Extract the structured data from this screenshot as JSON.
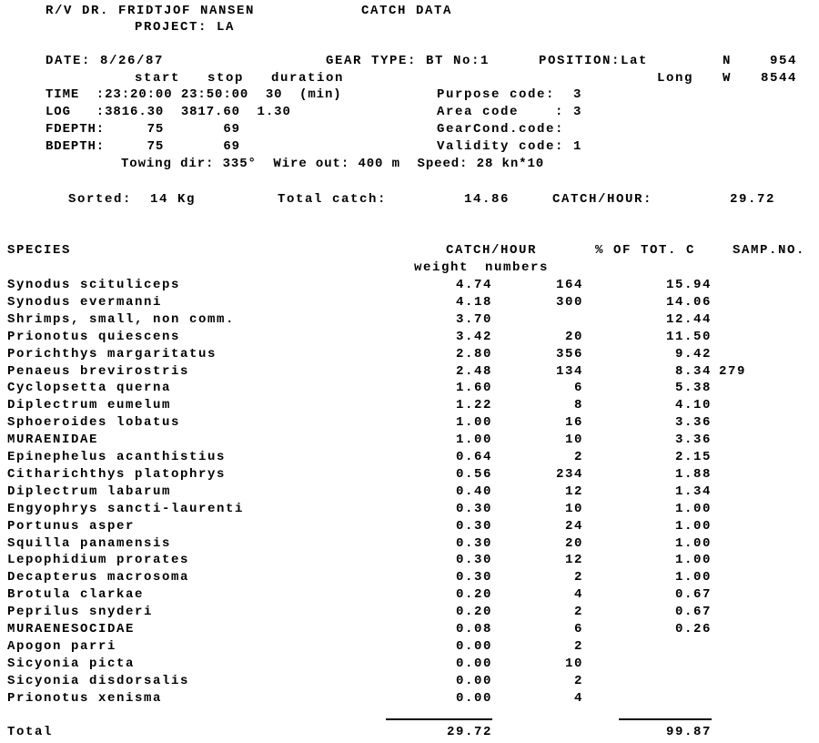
{
  "header": {
    "vessel": "R/V DR. FRIDTJOF NANSEN",
    "title": "CATCH DATA",
    "project": "PROJECT: LA"
  },
  "station": {
    "date": "DATE: 8/26/87",
    "gear_type": "GEAR TYPE: BT No:1",
    "position_lat_label": "POSITION:Lat",
    "lat_hemisphere": "N",
    "lat_value": "954",
    "col_headers": "start   stop   duration",
    "long_label": "Long",
    "long_hemisphere": "W",
    "long_value": "8544",
    "time_row": "TIME  :23:20:00 23:50:00  30  (min)",
    "purpose_code": "Purpose code:  3",
    "log_row": "LOG   :3816.30  3817.60  1.30",
    "area_code": "Area code    : 3",
    "fdepth_row": "FDEPTH:     75       69",
    "gearcond_code": "GearCond.code:",
    "bdepth_row": "BDEPTH:     75       69",
    "validity_code": "Validity code: 1",
    "towing": "Towing dir: 335°  Wire out: 400 m  Speed: 28 kn*10"
  },
  "summary": {
    "sorted": "Sorted:  14 Kg",
    "total_catch_label": "Total catch:",
    "total_catch_value": "14.86",
    "catch_hour_label": "CATCH/HOUR:",
    "catch_hour_value": "29.72"
  },
  "table": {
    "headers": {
      "species": "SPECIES",
      "catch_hour": "CATCH/HOUR",
      "pct_total": "% OF TOT. C",
      "samp_no": "SAMP.NO.",
      "weight": "weight",
      "numbers": "numbers"
    },
    "rows": [
      {
        "species": "Synodus scituliceps",
        "weight": "4.74",
        "numbers": "164",
        "pct": "15.94",
        "samp": ""
      },
      {
        "species": "Synodus evermanni",
        "weight": "4.18",
        "numbers": "300",
        "pct": "14.06",
        "samp": ""
      },
      {
        "species": "Shrimps, small, non comm.",
        "weight": "3.70",
        "numbers": "",
        "pct": "12.44",
        "samp": ""
      },
      {
        "species": "Prionotus quiescens",
        "weight": "3.42",
        "numbers": "20",
        "pct": "11.50",
        "samp": ""
      },
      {
        "species": "Porichthys margaritatus",
        "weight": "2.80",
        "numbers": "356",
        "pct": "9.42",
        "samp": ""
      },
      {
        "species": "Penaeus brevirostris",
        "weight": "2.48",
        "numbers": "134",
        "pct": "8.34",
        "samp": "279"
      },
      {
        "species": "Cyclopsetta querna",
        "weight": "1.60",
        "numbers": "6",
        "pct": "5.38",
        "samp": ""
      },
      {
        "species": "Diplectrum eumelum",
        "weight": "1.22",
        "numbers": "8",
        "pct": "4.10",
        "samp": ""
      },
      {
        "species": "Sphoeroides lobatus",
        "weight": "1.00",
        "numbers": "16",
        "pct": "3.36",
        "samp": ""
      },
      {
        "species": "MURAENIDAE",
        "weight": "1.00",
        "numbers": "10",
        "pct": "3.36",
        "samp": ""
      },
      {
        "species": "Epinephelus acanthistius",
        "weight": "0.64",
        "numbers": "2",
        "pct": "2.15",
        "samp": ""
      },
      {
        "species": "Citharichthys platophrys",
        "weight": "0.56",
        "numbers": "234",
        "pct": "1.88",
        "samp": ""
      },
      {
        "species": "Diplectrum labarum",
        "weight": "0.40",
        "numbers": "12",
        "pct": "1.34",
        "samp": ""
      },
      {
        "species": "Engyophrys sancti-laurenti",
        "weight": "0.30",
        "numbers": "10",
        "pct": "1.00",
        "samp": ""
      },
      {
        "species": "Portunus asper",
        "weight": "0.30",
        "numbers": "24",
        "pct": "1.00",
        "samp": ""
      },
      {
        "species": "Squilla panamensis",
        "weight": "0.30",
        "numbers": "20",
        "pct": "1.00",
        "samp": ""
      },
      {
        "species": "Lepophidium prorates",
        "weight": "0.30",
        "numbers": "12",
        "pct": "1.00",
        "samp": ""
      },
      {
        "species": "Decapterus macrosoma",
        "weight": "0.30",
        "numbers": "2",
        "pct": "1.00",
        "samp": ""
      },
      {
        "species": "Brotula clarkae",
        "weight": "0.20",
        "numbers": "4",
        "pct": "0.67",
        "samp": ""
      },
      {
        "species": "Peprilus snyderi",
        "weight": "0.20",
        "numbers": "2",
        "pct": "0.67",
        "samp": ""
      },
      {
        "species": "MURAENESOCIDAE",
        "weight": "0.08",
        "numbers": "6",
        "pct": "0.26",
        "samp": ""
      },
      {
        "species": "Apogon parri",
        "weight": "0.00",
        "numbers": "2",
        "pct": "",
        "samp": ""
      },
      {
        "species": "Sicyonia picta",
        "weight": "0.00",
        "numbers": "10",
        "pct": "",
        "samp": ""
      },
      {
        "species": "Sicyonia disdorsalis",
        "weight": "0.00",
        "numbers": "2",
        "pct": "",
        "samp": ""
      },
      {
        "species": "Prionotus xenisma",
        "weight": "0.00",
        "numbers": "4",
        "pct": "",
        "samp": ""
      }
    ],
    "total": {
      "label": "Total",
      "weight": "29.72",
      "pct": "99.87"
    }
  }
}
